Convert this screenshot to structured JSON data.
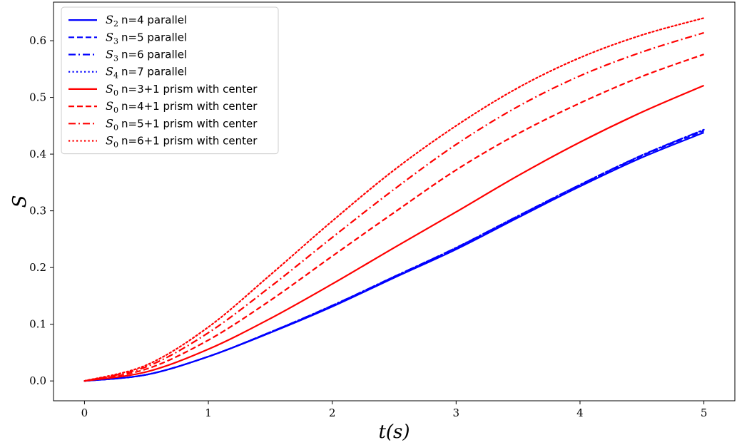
{
  "chart_data": {
    "type": "line",
    "xlabel": "t(s)",
    "ylabel": "S",
    "xlim": [
      -0.25,
      5.25
    ],
    "ylim": [
      -0.035,
      0.668
    ],
    "xticks": [
      0,
      1,
      2,
      3,
      4,
      5
    ],
    "yticks": [
      0.0,
      0.1,
      0.2,
      0.3,
      0.4,
      0.5,
      0.6
    ],
    "xtick_labels": [
      "0",
      "1",
      "2",
      "3",
      "4",
      "5"
    ],
    "ytick_labels": [
      "0.0",
      "0.1",
      "0.2",
      "0.3",
      "0.4",
      "0.5",
      "0.6"
    ],
    "grid": false,
    "legend_position": "top-left",
    "x": [
      0,
      0.5,
      1,
      1.5,
      2,
      2.5,
      3,
      3.5,
      4,
      4.5,
      5
    ],
    "series": [
      {
        "symbol": "S",
        "sub": "2",
        "label": "n=4 parallel",
        "color": "#0000ff",
        "style": "solid",
        "values": [
          0.0,
          0.011,
          0.043,
          0.085,
          0.131,
          0.182,
          0.232,
          0.288,
          0.343,
          0.394,
          0.438
        ]
      },
      {
        "symbol": "S",
        "sub": "3",
        "label": "n=5 parallel",
        "color": "#0000ff",
        "style": "dashed",
        "values": [
          0.0,
          0.011,
          0.043,
          0.086,
          0.132,
          0.183,
          0.234,
          0.29,
          0.345,
          0.397,
          0.441
        ]
      },
      {
        "symbol": "S",
        "sub": "3",
        "label": "n=6 parallel",
        "color": "#0000ff",
        "style": "dashdot",
        "values": [
          0.0,
          0.011,
          0.043,
          0.086,
          0.133,
          0.184,
          0.235,
          0.291,
          0.346,
          0.398,
          0.443
        ]
      },
      {
        "symbol": "S",
        "sub": "4",
        "label": "n=7 parallel",
        "color": "#0000ff",
        "style": "dotted",
        "values": [
          0.0,
          0.011,
          0.043,
          0.086,
          0.133,
          0.184,
          0.235,
          0.291,
          0.346,
          0.398,
          0.443
        ]
      },
      {
        "symbol": "S",
        "sub": "0",
        "label": "n=3+1 prism with center",
        "color": "#ff0000",
        "style": "solid",
        "values": [
          0.0,
          0.016,
          0.056,
          0.11,
          0.171,
          0.235,
          0.298,
          0.362,
          0.421,
          0.474,
          0.521
        ]
      },
      {
        "symbol": "S",
        "sub": "0",
        "label": "n=4+1 prism with center",
        "color": "#ff0000",
        "style": "dashed",
        "values": [
          0.0,
          0.021,
          0.072,
          0.142,
          0.22,
          0.297,
          0.372,
          0.436,
          0.49,
          0.537,
          0.576
        ]
      },
      {
        "symbol": "S",
        "sub": "0",
        "label": "n=5+1 prism with center",
        "color": "#ff0000",
        "style": "dashdot",
        "values": [
          0.0,
          0.025,
          0.085,
          0.166,
          0.253,
          0.338,
          0.417,
          0.484,
          0.538,
          0.58,
          0.614
        ]
      },
      {
        "symbol": "S",
        "sub": "0",
        "label": "n=6+1 prism with center",
        "color": "#ff0000",
        "style": "dotted",
        "values": [
          0.0,
          0.028,
          0.095,
          0.187,
          0.282,
          0.372,
          0.45,
          0.517,
          0.57,
          0.61,
          0.64
        ]
      }
    ]
  }
}
